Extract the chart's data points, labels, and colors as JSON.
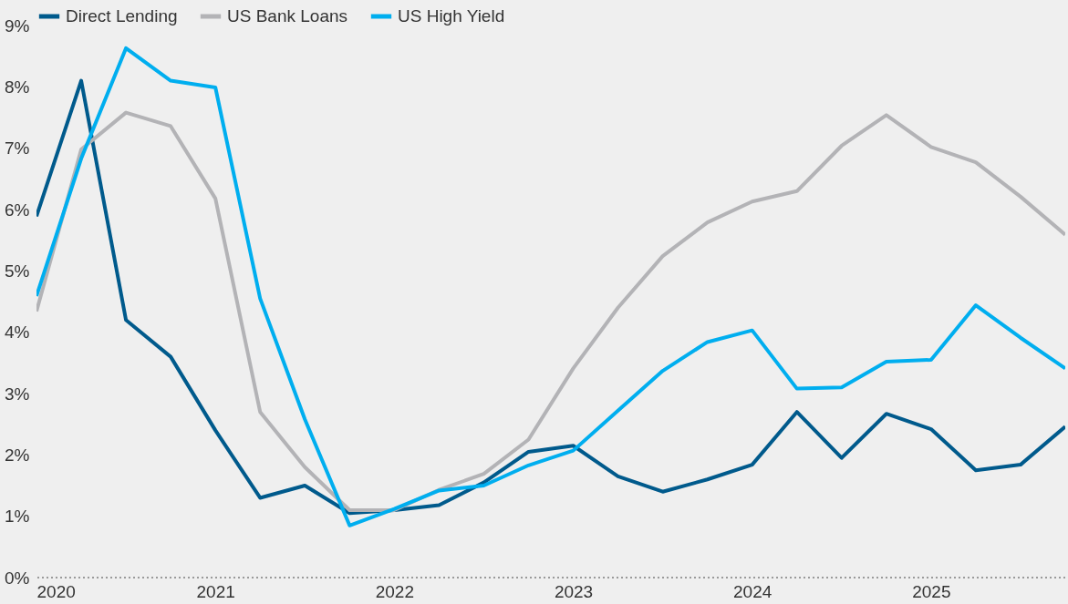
{
  "chart_data": {
    "type": "line",
    "x": [
      2020,
      2020.25,
      2020.5,
      2020.75,
      2021,
      2021.25,
      2021.5,
      2021.75,
      2022,
      2022.25,
      2022.5,
      2022.75,
      2023,
      2023.25,
      2023.5,
      2023.75,
      2024,
      2024.25,
      2024.5,
      2024.75,
      2025,
      2025.25,
      2025.5,
      2025.75
    ],
    "series": [
      {
        "name": "Direct Lending",
        "color": "#005a8c",
        "values": [
          5.89,
          8.1,
          4.2,
          3.6,
          2.4,
          1.3,
          1.5,
          1.05,
          1.1,
          1.18,
          1.55,
          2.05,
          2.15,
          1.65,
          1.4,
          1.6,
          1.84,
          2.7,
          1.95,
          2.67,
          2.42,
          1.75,
          1.84,
          2.46
        ]
      },
      {
        "name": "US Bank Loans",
        "color": "#b3b3b6",
        "values": [
          4.34,
          6.98,
          7.58,
          7.36,
          6.18,
          2.7,
          1.8,
          1.1,
          1.1,
          1.43,
          1.69,
          2.25,
          3.41,
          4.4,
          5.24,
          5.79,
          6.13,
          6.3,
          7.04,
          7.54,
          7.02,
          6.77,
          6.21,
          5.59
        ]
      },
      {
        "name": "US High Yield",
        "color": "#00aeef",
        "values": [
          4.59,
          6.83,
          8.63,
          8.1,
          7.99,
          4.55,
          2.58,
          0.85,
          1.12,
          1.42,
          1.5,
          1.83,
          2.07,
          2.72,
          3.37,
          3.84,
          4.03,
          3.08,
          3.1,
          3.52,
          3.55,
          4.44,
          3.91,
          3.41
        ]
      }
    ],
    "xlim": [
      2020,
      2025.75
    ],
    "xticks": [
      2020,
      2021,
      2022,
      2023,
      2024,
      2025
    ],
    "ylim": [
      0,
      9
    ],
    "yticks": [
      {
        "value": 0,
        "label": "0%"
      },
      {
        "value": 1,
        "label": "1%"
      },
      {
        "value": 2,
        "label": "2%"
      },
      {
        "value": 3,
        "label": "3%"
      },
      {
        "value": 4,
        "label": "4%"
      },
      {
        "value": 5,
        "label": "5%"
      },
      {
        "value": 6,
        "label": "6%"
      },
      {
        "value": 7,
        "label": "7%"
      },
      {
        "value": 8,
        "label": "8%"
      },
      {
        "value": 9,
        "label": "9%"
      }
    ],
    "ref_lines": [
      {
        "axis": "y",
        "value": 0,
        "line_style": "dotted",
        "color": "#7f7f7f"
      }
    ],
    "legend": "top",
    "line_style": "solid"
  }
}
